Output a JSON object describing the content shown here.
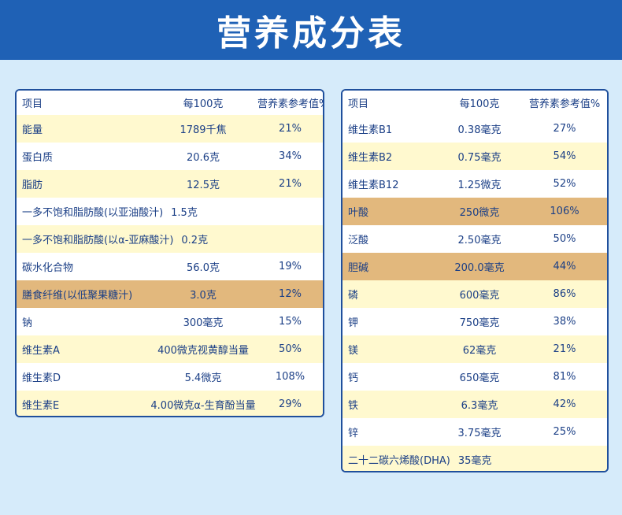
{
  "title": "营养成分表",
  "headers": {
    "item": "项目",
    "per100": "每100克",
    "nrv": "营养素参考值%"
  },
  "left_rows": [
    {
      "item": "能量",
      "per100": "1789千焦",
      "nrv": "21%",
      "style": "odd"
    },
    {
      "item": "蛋白质",
      "per100": "20.6克",
      "nrv": "34%",
      "style": "even"
    },
    {
      "item": "脂肪",
      "per100": "12.5克",
      "nrv": "21%",
      "style": "odd"
    },
    {
      "item": "一多不饱和脂肪酸(以亚油酸汁)",
      "per100": "1.5克",
      "nrv": "",
      "style": "even",
      "wide": true
    },
    {
      "item": "一多不饱和脂肪酸(以α-亚麻酸汁)",
      "per100": "0.2克",
      "nrv": "",
      "style": "odd",
      "wide": true
    },
    {
      "item": "碳水化合物",
      "per100": "56.0克",
      "nrv": "19%",
      "style": "even"
    },
    {
      "item": "膳食纤维(以低聚果糖汁)",
      "per100": "3.0克",
      "nrv": "12%",
      "style": "hl"
    },
    {
      "item": "钠",
      "per100": "300毫克",
      "nrv": "15%",
      "style": "even"
    },
    {
      "item": "维生素A",
      "per100": "400微克视黄醇当量",
      "nrv": "50%",
      "style": "odd"
    },
    {
      "item": "维生素D",
      "per100": "5.4微克",
      "nrv": "108%",
      "style": "even"
    },
    {
      "item": "维生素E",
      "per100": "4.00微克α-生育酚当量",
      "nrv": "29%",
      "style": "odd"
    }
  ],
  "right_rows": [
    {
      "item": "维生素B1",
      "per100": "0.38毫克",
      "nrv": "27%",
      "style": "even"
    },
    {
      "item": "维生素B2",
      "per100": "0.75毫克",
      "nrv": "54%",
      "style": "odd"
    },
    {
      "item": "维生素B12",
      "per100": "1.25微克",
      "nrv": "52%",
      "style": "even"
    },
    {
      "item": "叶酸",
      "per100": "250微克",
      "nrv": "106%",
      "style": "hl"
    },
    {
      "item": "泛酸",
      "per100": "2.50毫克",
      "nrv": "50%",
      "style": "even"
    },
    {
      "item": "胆碱",
      "per100": "200.0毫克",
      "nrv": "44%",
      "style": "hl"
    },
    {
      "item": "磷",
      "per100": "600毫克",
      "nrv": "86%",
      "style": "odd"
    },
    {
      "item": "钾",
      "per100": "750毫克",
      "nrv": "38%",
      "style": "even"
    },
    {
      "item": "镁",
      "per100": "62毫克",
      "nrv": "21%",
      "style": "odd"
    },
    {
      "item": "钙",
      "per100": "650毫克",
      "nrv": "81%",
      "style": "even"
    },
    {
      "item": "铁",
      "per100": "6.3毫克",
      "nrv": "42%",
      "style": "odd"
    },
    {
      "item": "锌",
      "per100": "3.75毫克",
      "nrv": "25%",
      "style": "even"
    },
    {
      "item": "二十二碳六烯酸(DHA)",
      "per100": "35毫克",
      "nrv": "",
      "style": "odd",
      "wide": true
    }
  ],
  "colors": {
    "header_bg": "#1f61b5",
    "page_bg": "#d6ebfa",
    "text": "#1b3f86",
    "row_yellow": "#fff9cf",
    "row_highlight": "#e2b87d"
  }
}
